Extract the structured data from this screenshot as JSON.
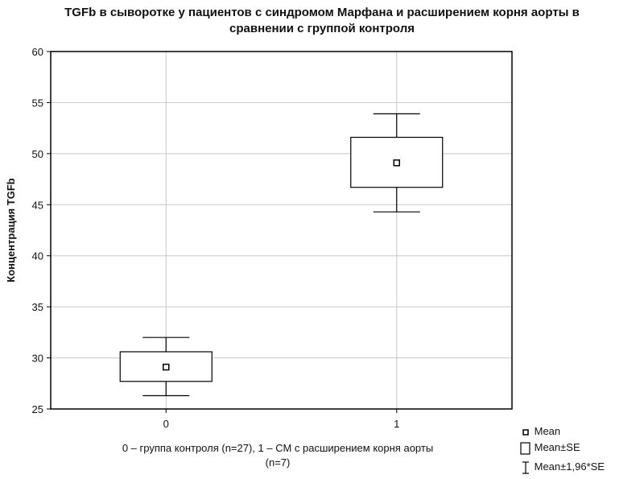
{
  "chart_data": {
    "type": "box",
    "title": "TGFb в сыворотке у пациентов с синдромом Марфана и расширением корня аорты в сравнении с группой контроля",
    "title_lines": [
      "TGFb в сыворотке у пациентов с синдромом Марфана и расширением корня аорты в",
      "сравнении с группой контроля"
    ],
    "ylabel": "Концентрация TGFb",
    "xlabel": "0 – группа контроля (n=27), 1 – СМ с расширением корня аорты (n=7)",
    "xlabel_lines": [
      "0 – группа контроля (n=27), 1 – СМ с расширением корня аорты",
      "(n=7)"
    ],
    "categories": [
      "0",
      "1"
    ],
    "ylim": [
      25,
      60
    ],
    "yticks": [
      25,
      30,
      35,
      40,
      45,
      50,
      55,
      60
    ],
    "grid": true,
    "series": [
      {
        "category": "0",
        "mean": 29.1,
        "se_low": 27.7,
        "se_high": 30.6,
        "ci_low": 26.3,
        "ci_high": 32.0
      },
      {
        "category": "1",
        "mean": 49.1,
        "se_low": 46.7,
        "se_high": 51.6,
        "ci_low": 44.3,
        "ci_high": 53.9
      }
    ],
    "legend": {
      "placement": "bottom-right",
      "items": [
        "Mean",
        "Mean±SE",
        "Mean±1,96*SE"
      ]
    }
  }
}
